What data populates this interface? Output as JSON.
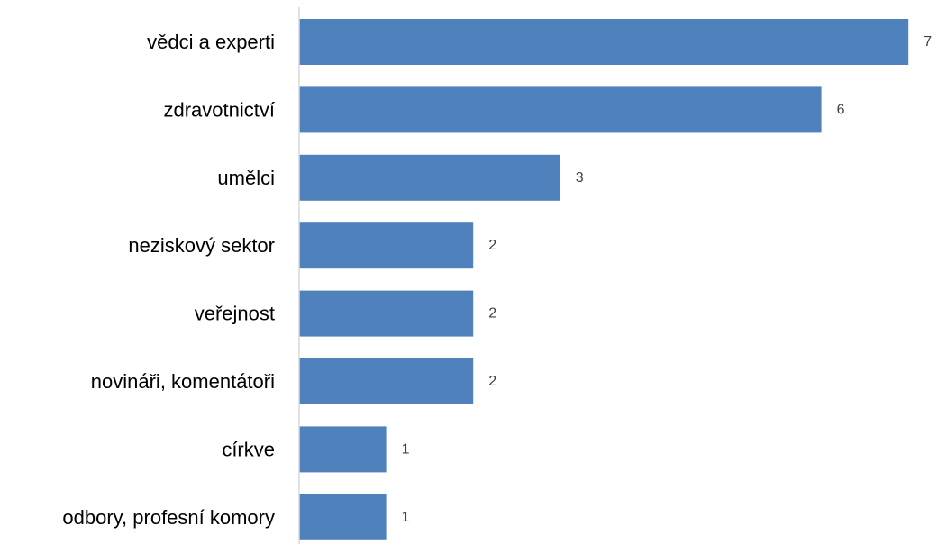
{
  "chart_data": {
    "type": "bar",
    "orientation": "horizontal",
    "categories": [
      "vědci a experti",
      "zdravotnictví",
      "umělci",
      "neziskový sektor",
      "veřejnost",
      "novináři, komentátoři",
      "církve",
      "odbory, profesní komory"
    ],
    "values": [
      7,
      6,
      3,
      2,
      2,
      2,
      1,
      1
    ],
    "xlim": [
      0,
      7
    ],
    "grid": false,
    "legend": "none",
    "data_labels": true,
    "colors": {
      "bar": "#4f81bd",
      "axis": "#d9d9d9",
      "category_text": "#000000",
      "value_text": "#404040"
    }
  }
}
